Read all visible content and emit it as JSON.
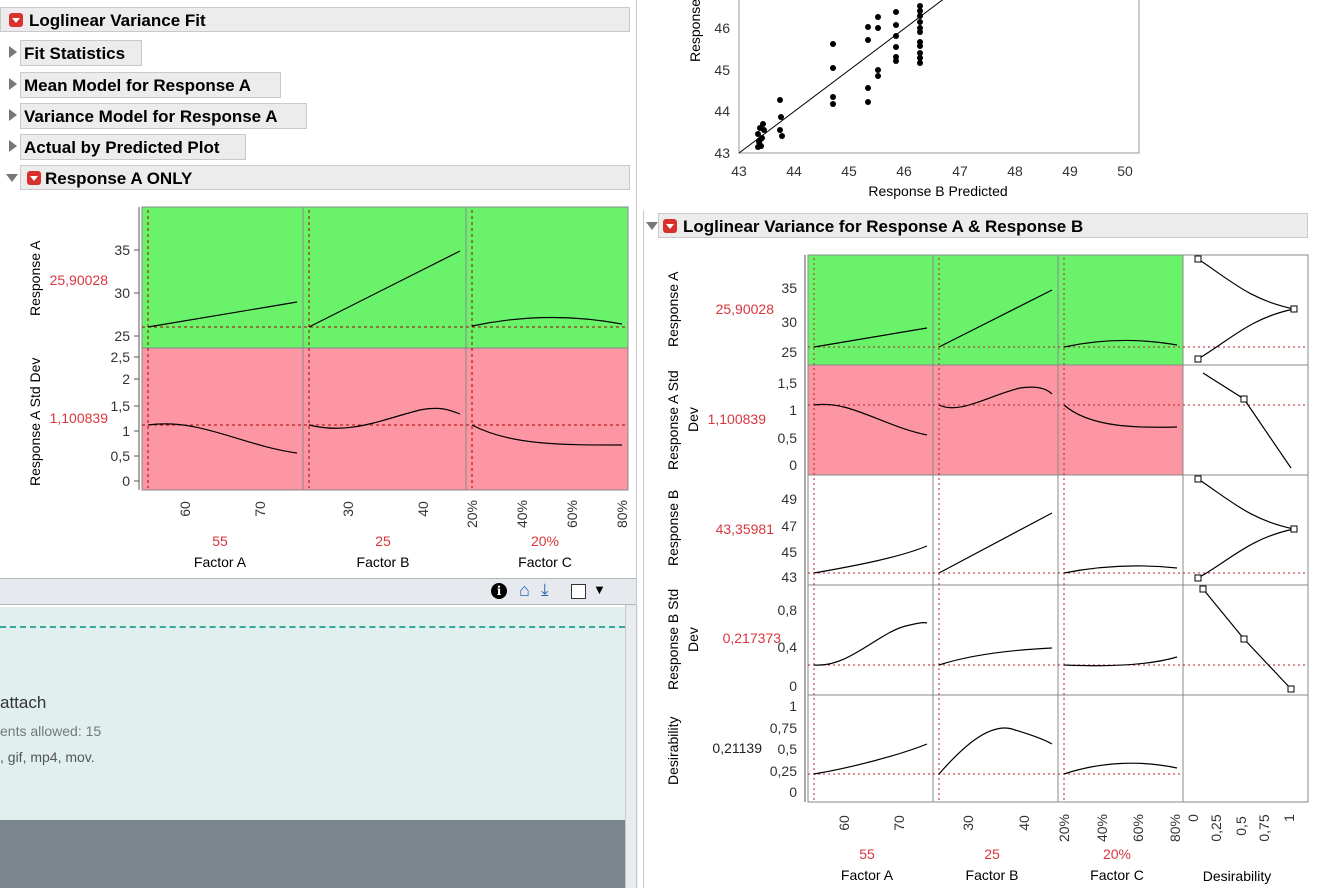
{
  "left": {
    "title": "Loglinear Variance Fit",
    "sections": [
      "Fit Statistics",
      "Mean Model for Response A",
      "Variance Model for Response A",
      "Actual by Predicted Plot"
    ],
    "sub_title": "Response A ONLY",
    "rows": [
      {
        "label": "Response A",
        "value": "25,90028",
        "ticks": [
          "25",
          "30",
          "35"
        ]
      },
      {
        "label": "Response A Std Dev",
        "value": "1,100839",
        "ticks": [
          "0",
          "0,5",
          "1",
          "1,5",
          "2",
          "2,5"
        ]
      }
    ],
    "factors": [
      {
        "name": "Factor A",
        "value": "55",
        "ticks": [
          "60",
          "70"
        ]
      },
      {
        "name": "Factor B",
        "value": "25",
        "ticks": [
          "30",
          "40"
        ]
      },
      {
        "name": "Factor C",
        "value": "20%",
        "ticks": [
          "20%",
          "40%",
          "60%",
          "80%"
        ]
      }
    ]
  },
  "toolbar": {
    "info": "i",
    "home": "⌂",
    "export": "⤓",
    "checkbox": "",
    "dropdown": "▼"
  },
  "web": {
    "attach": "attach",
    "allowed": "ents allowed: 15",
    "types": ", gif, mp4, mov."
  },
  "scatter": {
    "ylabel": "Response",
    "xlabel": "Response B Predicted",
    "yticks": [
      "43",
      "44",
      "45",
      "46"
    ],
    "xticks": [
      "43",
      "44",
      "45",
      "46",
      "47",
      "48",
      "49",
      "50"
    ]
  },
  "right": {
    "title": "Loglinear Variance for Response A & Response B",
    "rows": [
      {
        "label1": "Response A",
        "label2": "",
        "value": "25,90028",
        "ticks": [
          "25",
          "30",
          "35"
        ]
      },
      {
        "label1": "Response A Std",
        "label2": "Dev",
        "value": "1,100839",
        "ticks": [
          "0",
          "0,5",
          "1",
          "1,5"
        ]
      },
      {
        "label1": "Response B",
        "label2": "",
        "value": "43,35981",
        "ticks": [
          "43",
          "45",
          "47",
          "49"
        ]
      },
      {
        "label1": "Response B Std",
        "label2": "Dev",
        "value": "0,217373",
        "ticks": [
          "0",
          "0,4",
          "0,8"
        ]
      },
      {
        "label1": "Desirability",
        "label2": "",
        "value": "0,21139",
        "ticks": [
          "0",
          "0,25",
          "0,5",
          "0,75",
          "1"
        ]
      }
    ],
    "factors": [
      {
        "name": "Factor A",
        "value": "55",
        "ticks": [
          "60",
          "70"
        ]
      },
      {
        "name": "Factor B",
        "value": "25",
        "ticks": [
          "30",
          "40"
        ]
      },
      {
        "name": "Factor C",
        "value": "20%",
        "ticks": [
          "20%",
          "40%",
          "60%",
          "80%"
        ]
      }
    ],
    "desirability": {
      "name": "Desirability",
      "ticks": [
        "0",
        "0,25",
        "0,5",
        "0,75",
        "1"
      ]
    }
  },
  "colors": {
    "green": "#6af36a",
    "red": "#fd96a3",
    "value_red": "#d9363e"
  }
}
